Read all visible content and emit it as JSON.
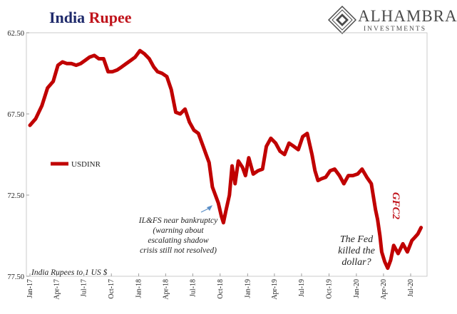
{
  "title": {
    "part1": "India",
    "part2": "Rupee"
  },
  "logo": {
    "word": "ALHAMBRA",
    "sub": "INVESTMENTS"
  },
  "colors": {
    "series": "#c00000",
    "title_blue": "#1f2a6b",
    "title_red": "#c0141c",
    "annotation_arrow": "#5b8fc7",
    "gfc2": "#c0141c"
  },
  "chart_data": {
    "type": "line",
    "title": "India Rupee",
    "ylabel": "India Rupees to 1 US $",
    "y_inverted": true,
    "ylim": [
      62.5,
      77.5
    ],
    "yticks": [
      62.5,
      67.5,
      72.5,
      77.5
    ],
    "ytick_labels": [
      "62.50",
      "67.50",
      "72.50",
      "77.50"
    ],
    "xticks": [
      "Jan-17",
      "Apr-17",
      "Jul-17",
      "Oct-17",
      "Jan-18",
      "Apr-18",
      "Jul-18",
      "Oct-18",
      "Jan-19",
      "Apr-19",
      "Jul-19",
      "Oct-19",
      "Jan-20",
      "Apr-20",
      "Jul-20"
    ],
    "grid": false,
    "legend": {
      "position": "left-middle",
      "entries": [
        "USDINR"
      ]
    },
    "series": [
      {
        "name": "USDINR",
        "x": [
          "2017-01-01",
          "2017-01-20",
          "2017-02-10",
          "2017-03-01",
          "2017-03-20",
          "2017-04-05",
          "2017-04-20",
          "2017-05-05",
          "2017-05-20",
          "2017-06-05",
          "2017-06-20",
          "2017-07-05",
          "2017-07-20",
          "2017-08-05",
          "2017-08-20",
          "2017-09-05",
          "2017-09-20",
          "2017-10-05",
          "2017-10-20",
          "2017-11-05",
          "2017-11-20",
          "2017-12-05",
          "2017-12-20",
          "2018-01-05",
          "2018-01-20",
          "2018-02-05",
          "2018-02-20",
          "2018-03-05",
          "2018-03-20",
          "2018-04-05",
          "2018-04-20",
          "2018-05-05",
          "2018-05-20",
          "2018-06-05",
          "2018-06-20",
          "2018-07-05",
          "2018-07-20",
          "2018-08-05",
          "2018-08-15",
          "2018-08-25",
          "2018-09-05",
          "2018-09-15",
          "2018-09-25",
          "2018-10-05",
          "2018-10-12",
          "2018-10-20",
          "2018-11-01",
          "2018-11-10",
          "2018-11-20",
          "2018-12-01",
          "2018-12-15",
          "2018-12-25",
          "2019-01-05",
          "2019-01-20",
          "2019-02-05",
          "2019-02-20",
          "2019-03-05",
          "2019-03-20",
          "2019-04-05",
          "2019-04-20",
          "2019-05-05",
          "2019-05-20",
          "2019-06-05",
          "2019-06-20",
          "2019-07-05",
          "2019-07-20",
          "2019-08-05",
          "2019-08-15",
          "2019-08-25",
          "2019-09-05",
          "2019-09-20",
          "2019-10-05",
          "2019-10-20",
          "2019-11-05",
          "2019-11-20",
          "2019-12-05",
          "2019-12-20",
          "2020-01-05",
          "2020-01-20",
          "2020-02-05",
          "2020-02-20",
          "2020-03-05",
          "2020-03-12",
          "2020-03-20",
          "2020-03-26",
          "2020-04-05",
          "2020-04-15",
          "2020-04-25",
          "2020-05-05",
          "2020-05-20",
          "2020-06-05",
          "2020-06-20",
          "2020-07-05",
          "2020-07-15",
          "2020-07-25",
          "2020-08-05"
        ],
        "y": [
          68.2,
          67.8,
          67.0,
          65.9,
          65.5,
          64.5,
          64.3,
          64.4,
          64.4,
          64.5,
          64.4,
          64.2,
          64.0,
          63.9,
          64.1,
          64.1,
          64.9,
          64.9,
          64.8,
          64.6,
          64.4,
          64.2,
          64.0,
          63.6,
          63.8,
          64.1,
          64.6,
          64.9,
          65.0,
          65.2,
          66.0,
          67.4,
          67.5,
          67.2,
          68.0,
          68.5,
          68.7,
          69.5,
          70.0,
          70.5,
          72.0,
          72.5,
          73.0,
          73.8,
          74.2,
          73.5,
          72.5,
          70.7,
          71.8,
          70.4,
          70.8,
          71.3,
          70.2,
          71.2,
          71.0,
          70.9,
          69.5,
          69.0,
          69.3,
          69.8,
          70.0,
          69.3,
          69.5,
          69.7,
          68.9,
          68.7,
          70.0,
          71.0,
          71.6,
          71.5,
          71.4,
          71.0,
          70.9,
          71.3,
          71.8,
          71.3,
          71.3,
          71.2,
          70.9,
          71.4,
          71.8,
          73.4,
          74.0,
          75.0,
          76.0,
          76.6,
          77.0,
          76.5,
          75.6,
          76.1,
          75.5,
          76.0,
          75.3,
          75.1,
          74.9,
          74.5
        ]
      }
    ],
    "annotations": [
      {
        "text_lines": [
          "IL&FS near bankruptcy",
          "(warning about",
          "escalating shadow",
          "crisis still not resolved)"
        ],
        "x": "2018-09-10",
        "y": 72.9
      },
      {
        "text": "GFC2",
        "x": "2020-03-01",
        "y": 72.5
      },
      {
        "text_lines": [
          "The Fed",
          "killed the",
          "dollar?"
        ],
        "x": "2020-02-10",
        "y": 76.0
      }
    ]
  }
}
